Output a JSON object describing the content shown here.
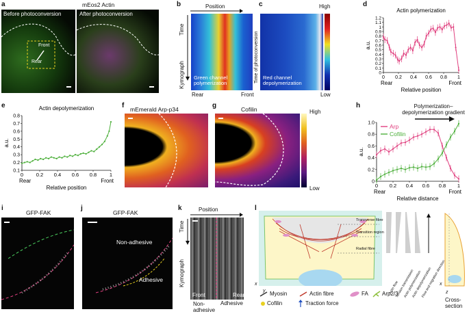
{
  "panels": {
    "a": {
      "label": "a",
      "title": "mEos2 Actin",
      "left_caption": "Before photoconversion",
      "right_caption": "After photoconversion",
      "front": "Front",
      "rear": "Rear"
    },
    "b": {
      "label": "b",
      "position": "Position",
      "time": "Time",
      "kymograph": "Kymograph",
      "caption": "Green channel polymerization",
      "rear": "Rear",
      "front": "Front",
      "side": "Time of photoconversion"
    },
    "c": {
      "label": "c",
      "caption": "Red channel depolymerization",
      "high": "High",
      "low": "Low"
    },
    "d": {
      "label": "d"
    },
    "e": {
      "label": "e"
    },
    "f": {
      "label": "f",
      "title": "mEmerald Arp-p34"
    },
    "g": {
      "label": "g",
      "title": "Cofilin",
      "high": "High",
      "low": "Low"
    },
    "h": {
      "label": "h",
      "gradient_title": "Polymerization–depolymerization gradient"
    },
    "i": {
      "label": "i",
      "title": "GFP-FAK"
    },
    "j": {
      "label": "j",
      "title": "GFP-FAK",
      "non_adhesive": "Non-adhesive",
      "adhesive": "Adhesive"
    },
    "k": {
      "label": "k",
      "position": "Position",
      "time": "Time",
      "kymograph": "Kymograph",
      "front": "Front",
      "rear": "Rear",
      "non_adhesive": "Non-adhesive",
      "adhesive": "Adhesive"
    },
    "l": {
      "label": "l",
      "transverse": "Transverse fibre",
      "transition": "Transition region",
      "radial": "Radial fibre",
      "vertical_labels": [
        "Actin flow",
        "Tension transmission",
        "Actin polymerization",
        "Actin depolymerization",
        "Flow and migration direction"
      ],
      "cross_section": "Cross-section",
      "axis_x": "x",
      "axis_y": "y",
      "axis_z": "z",
      "legend": {
        "myosin": "Myosin",
        "actin": "Actin fibre",
        "fa": "FA",
        "arp": "Arp2/3",
        "cofilin": "Cofilin",
        "traction": "Traction force"
      }
    }
  },
  "chart_data": [
    {
      "type": "line",
      "panel": "d",
      "title": "Actin polymerization",
      "xlabel": "Relative position",
      "ylabel": "a.u.",
      "xlim": [
        0,
        1
      ],
      "ylim": [
        0,
        1.2
      ],
      "xticks": [
        "0",
        "0.2",
        "0.4",
        "0.6",
        "0.8",
        "1"
      ],
      "yticks": [
        "0",
        "0.1",
        "0.2",
        "0.3",
        "0.4",
        "0.5",
        "0.6",
        "0.7",
        "0.8",
        "0.9",
        "1",
        "1.1",
        "1.2"
      ],
      "x_end_labels": [
        "Rear",
        "Front"
      ],
      "series": [
        {
          "color": "#e0407f",
          "x": [
            0,
            0.02,
            0.05,
            0.08,
            0.1,
            0.13,
            0.16,
            0.19,
            0.21,
            0.24,
            0.27,
            0.3,
            0.33,
            0.36,
            0.39,
            0.42,
            0.45,
            0.48,
            0.51,
            0.54,
            0.57,
            0.6,
            0.63,
            0.66,
            0.69,
            0.72,
            0.75,
            0.78,
            0.81,
            0.84,
            0.87,
            0.9,
            0.93,
            0.96,
            1
          ],
          "y": [
            0.78,
            0.72,
            0.7,
            0.55,
            0.45,
            0.42,
            0.38,
            0.28,
            0.25,
            0.3,
            0.42,
            0.38,
            0.5,
            0.55,
            0.48,
            0.66,
            0.72,
            0.6,
            0.55,
            0.62,
            0.8,
            0.86,
            0.95,
            0.97,
            0.88,
            0.98,
            1.0,
            0.94,
            1.02,
            1.04,
            1.08,
            0.98,
            1.0,
            0.55,
            0.05
          ]
        }
      ]
    },
    {
      "type": "line",
      "panel": "e",
      "title": "Actin depolymerization",
      "xlabel": "Relative position",
      "ylabel": "a.u.",
      "xlim": [
        0,
        1
      ],
      "ylim": [
        0.1,
        0.8
      ],
      "xticks": [
        "0",
        "0.2",
        "0.4",
        "0.6",
        "0.8",
        "1"
      ],
      "yticks": [
        "0.1",
        "0.2",
        "0.3",
        "0.4",
        "0.5",
        "0.6",
        "0.7",
        "0.8"
      ],
      "x_end_labels": [
        "Rear",
        "Front"
      ],
      "series": [
        {
          "color": "#4caf3a",
          "x": [
            0,
            0.03,
            0.06,
            0.09,
            0.12,
            0.15,
            0.18,
            0.21,
            0.24,
            0.27,
            0.3,
            0.33,
            0.36,
            0.39,
            0.42,
            0.45,
            0.48,
            0.51,
            0.54,
            0.57,
            0.6,
            0.63,
            0.66,
            0.69,
            0.72,
            0.75,
            0.78,
            0.81,
            0.84,
            0.87,
            0.9,
            0.93,
            0.96,
            0.98,
            1
          ],
          "y": [
            0.19,
            0.2,
            0.21,
            0.2,
            0.22,
            0.24,
            0.23,
            0.25,
            0.24,
            0.26,
            0.25,
            0.27,
            0.26,
            0.25,
            0.27,
            0.26,
            0.28,
            0.27,
            0.29,
            0.28,
            0.3,
            0.29,
            0.31,
            0.32,
            0.31,
            0.33,
            0.35,
            0.34,
            0.37,
            0.4,
            0.43,
            0.47,
            0.54,
            0.6,
            0.72
          ]
        }
      ]
    },
    {
      "type": "line",
      "panel": "h",
      "xlabel": "Relative distance",
      "ylabel": "a.u.",
      "xlim": [
        0,
        1
      ],
      "ylim": [
        0,
        1
      ],
      "xticks": [
        "0",
        "0.2",
        "0.4",
        "0.6",
        "0.8",
        "1"
      ],
      "yticks": [
        "0",
        "0.2",
        "0.4",
        "0.6",
        "0.8",
        "1.0"
      ],
      "x_end_labels": [
        "Rear",
        "Front"
      ],
      "legend": "top-left",
      "series": [
        {
          "name": "Arp",
          "color": "#e0407f",
          "x": [
            0,
            0.05,
            0.1,
            0.15,
            0.2,
            0.25,
            0.3,
            0.35,
            0.4,
            0.45,
            0.5,
            0.55,
            0.6,
            0.65,
            0.7,
            0.75,
            0.8,
            0.85,
            0.9,
            0.95,
            1
          ],
          "y": [
            0.45,
            0.52,
            0.55,
            0.5,
            0.55,
            0.6,
            0.65,
            0.66,
            0.7,
            0.75,
            0.77,
            0.8,
            0.84,
            0.88,
            0.88,
            0.82,
            0.6,
            0.4,
            0.22,
            0.1,
            0.04
          ]
        },
        {
          "name": "Cofilin",
          "color": "#4caf3a",
          "x": [
            0,
            0.05,
            0.1,
            0.15,
            0.2,
            0.25,
            0.3,
            0.35,
            0.4,
            0.45,
            0.5,
            0.55,
            0.6,
            0.65,
            0.7,
            0.75,
            0.8,
            0.85,
            0.9,
            0.95,
            1
          ],
          "y": [
            0.02,
            0.08,
            0.12,
            0.15,
            0.18,
            0.2,
            0.22,
            0.2,
            0.23,
            0.24,
            0.22,
            0.25,
            0.24,
            0.25,
            0.3,
            0.38,
            0.48,
            0.62,
            0.75,
            0.85,
            0.98
          ]
        }
      ]
    }
  ]
}
